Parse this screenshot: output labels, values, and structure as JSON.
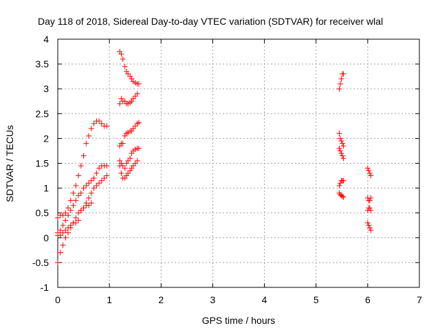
{
  "chart_data": {
    "type": "scatter",
    "title": "Day 118 of 2018, Sidereal Day-to-day VTEC variation (SDTVAR) for receiver wlal",
    "xlabel": "GPS time / hours",
    "ylabel": "SDTVAR / TECUs",
    "xlim": [
      0,
      7
    ],
    "ylim": [
      -1,
      4
    ],
    "xticks": [
      "0",
      "1",
      "2",
      "3",
      "4",
      "5",
      "6",
      "7"
    ],
    "yticks": [
      "-1",
      "-0.5",
      "0",
      "0.5",
      "1",
      "1.5",
      "2",
      "2.5",
      "3",
      "3.5",
      "4"
    ],
    "grid": true,
    "marker": "plus",
    "color": "#ff0000",
    "series": [
      {
        "points": [
          [
            0.0,
            0.4
          ],
          [
            0.05,
            0.45
          ],
          [
            0.1,
            0.45
          ],
          [
            0.15,
            0.5
          ],
          [
            0.2,
            0.6
          ],
          [
            0.25,
            0.75
          ],
          [
            0.3,
            0.9
          ],
          [
            0.35,
            1.05
          ],
          [
            0.4,
            1.25
          ],
          [
            0.45,
            1.45
          ],
          [
            0.5,
            1.65
          ],
          [
            0.55,
            1.9
          ],
          [
            0.6,
            2.05
          ],
          [
            0.65,
            2.2
          ],
          [
            0.7,
            2.3
          ],
          [
            0.75,
            2.35
          ],
          [
            0.8,
            2.35
          ],
          [
            0.85,
            2.3
          ],
          [
            0.9,
            2.25
          ],
          [
            0.95,
            2.25
          ]
        ]
      },
      {
        "points": [
          [
            0.0,
            0.1
          ],
          [
            0.05,
            0.15
          ],
          [
            0.1,
            0.25
          ],
          [
            0.15,
            0.35
          ],
          [
            0.2,
            0.45
          ],
          [
            0.25,
            0.55
          ],
          [
            0.3,
            0.65
          ],
          [
            0.35,
            0.75
          ],
          [
            0.4,
            0.85
          ],
          [
            0.45,
            0.9
          ],
          [
            0.5,
            1.0
          ],
          [
            0.55,
            1.05
          ],
          [
            0.6,
            1.1
          ],
          [
            0.65,
            1.15
          ],
          [
            0.7,
            1.2
          ],
          [
            0.75,
            1.3
          ],
          [
            0.8,
            1.4
          ],
          [
            0.85,
            1.45
          ],
          [
            0.9,
            1.45
          ],
          [
            0.95,
            1.45
          ]
        ]
      },
      {
        "points": [
          [
            0.0,
            -0.5
          ],
          [
            0.05,
            -0.3
          ],
          [
            0.1,
            -0.15
          ],
          [
            0.15,
            0.0
          ],
          [
            0.2,
            0.1
          ],
          [
            0.25,
            0.2
          ],
          [
            0.3,
            0.3
          ],
          [
            0.35,
            0.4
          ],
          [
            0.4,
            0.5
          ],
          [
            0.45,
            0.55
          ],
          [
            0.5,
            0.6
          ],
          [
            0.55,
            0.7
          ],
          [
            0.6,
            0.8
          ],
          [
            0.65,
            0.9
          ],
          [
            0.7,
            1.0
          ],
          [
            0.75,
            1.05
          ],
          [
            0.8,
            1.1
          ],
          [
            0.85,
            1.15
          ],
          [
            0.9,
            1.2
          ],
          [
            0.95,
            1.25
          ]
        ]
      },
      {
        "points": [
          [
            0.0,
            0.05
          ],
          [
            0.05,
            0.05
          ],
          [
            0.1,
            0.1
          ],
          [
            0.15,
            0.15
          ],
          [
            0.2,
            0.2
          ],
          [
            0.25,
            0.25
          ],
          [
            0.3,
            0.3
          ],
          [
            0.35,
            0.3
          ],
          [
            0.4,
            0.35
          ],
          [
            0.45,
            0.55
          ],
          [
            0.5,
            0.6
          ],
          [
            0.55,
            0.65
          ],
          [
            0.6,
            0.65
          ],
          [
            0.65,
            0.7
          ]
        ]
      },
      {
        "points": [
          [
            1.2,
            3.75
          ],
          [
            1.23,
            3.7
          ],
          [
            1.26,
            3.6
          ],
          [
            1.3,
            3.45
          ],
          [
            1.33,
            3.35
          ],
          [
            1.36,
            3.3
          ],
          [
            1.4,
            3.25
          ],
          [
            1.43,
            3.2
          ],
          [
            1.46,
            3.15
          ],
          [
            1.5,
            3.12
          ],
          [
            1.54,
            3.1
          ],
          [
            1.57,
            3.1
          ]
        ]
      },
      {
        "points": [
          [
            1.2,
            2.7
          ],
          [
            1.23,
            2.8
          ],
          [
            1.26,
            2.75
          ],
          [
            1.3,
            2.75
          ],
          [
            1.33,
            2.7
          ],
          [
            1.36,
            2.7
          ],
          [
            1.4,
            2.72
          ],
          [
            1.43,
            2.75
          ],
          [
            1.46,
            2.8
          ],
          [
            1.5,
            2.85
          ],
          [
            1.54,
            2.9
          ]
        ]
      },
      {
        "points": [
          [
            1.2,
            1.85
          ],
          [
            1.23,
            1.9
          ],
          [
            1.26,
            1.9
          ],
          [
            1.3,
            2.05
          ],
          [
            1.33,
            2.1
          ],
          [
            1.36,
            2.12
          ],
          [
            1.4,
            2.15
          ],
          [
            1.43,
            2.15
          ],
          [
            1.46,
            2.2
          ],
          [
            1.5,
            2.25
          ],
          [
            1.54,
            2.3
          ],
          [
            1.57,
            2.32
          ]
        ]
      },
      {
        "points": [
          [
            1.2,
            1.55
          ],
          [
            1.23,
            1.5
          ],
          [
            1.26,
            1.45
          ],
          [
            1.3,
            1.4
          ],
          [
            1.33,
            1.5
          ],
          [
            1.36,
            1.55
          ],
          [
            1.4,
            1.6
          ],
          [
            1.43,
            1.7
          ],
          [
            1.46,
            1.75
          ],
          [
            1.5,
            1.78
          ],
          [
            1.54,
            1.8
          ],
          [
            1.57,
            1.8
          ]
        ]
      },
      {
        "points": [
          [
            1.2,
            1.45
          ],
          [
            1.23,
            1.3
          ],
          [
            1.26,
            1.2
          ],
          [
            1.3,
            1.2
          ],
          [
            1.33,
            1.25
          ],
          [
            1.36,
            1.3
          ],
          [
            1.4,
            1.35
          ],
          [
            1.43,
            1.4
          ],
          [
            1.46,
            1.45
          ],
          [
            1.5,
            1.5
          ],
          [
            1.54,
            1.55
          ]
        ]
      },
      {
        "points": [
          [
            5.45,
            3.0
          ],
          [
            5.47,
            3.1
          ],
          [
            5.49,
            3.2
          ],
          [
            5.51,
            3.3
          ],
          [
            5.53,
            3.3
          ]
        ]
      },
      {
        "points": [
          [
            5.45,
            2.1
          ],
          [
            5.47,
            2.0
          ],
          [
            5.49,
            1.95
          ],
          [
            5.51,
            1.9
          ],
          [
            5.53,
            1.85
          ]
        ]
      },
      {
        "points": [
          [
            5.45,
            1.8
          ],
          [
            5.47,
            1.75
          ],
          [
            5.49,
            1.7
          ],
          [
            5.51,
            1.65
          ],
          [
            5.53,
            1.6
          ]
        ]
      },
      {
        "points": [
          [
            5.45,
            1.05
          ],
          [
            5.47,
            1.1
          ],
          [
            5.49,
            1.15
          ],
          [
            5.51,
            1.15
          ],
          [
            5.53,
            1.15
          ]
        ]
      },
      {
        "points": [
          [
            5.45,
            0.9
          ],
          [
            5.47,
            0.87
          ],
          [
            5.49,
            0.85
          ],
          [
            5.51,
            0.83
          ],
          [
            5.53,
            0.82
          ]
        ]
      },
      {
        "points": [
          [
            6.0,
            1.4
          ],
          [
            6.02,
            1.35
          ],
          [
            6.04,
            1.3
          ],
          [
            6.06,
            1.25
          ]
        ]
      },
      {
        "points": [
          [
            6.0,
            0.8
          ],
          [
            6.02,
            0.75
          ],
          [
            6.04,
            0.75
          ],
          [
            6.06,
            0.8
          ]
        ]
      },
      {
        "points": [
          [
            6.0,
            0.55
          ],
          [
            6.02,
            0.6
          ],
          [
            6.04,
            0.6
          ],
          [
            6.06,
            0.55
          ]
        ]
      },
      {
        "points": [
          [
            6.0,
            0.3
          ],
          [
            6.02,
            0.25
          ],
          [
            6.04,
            0.2
          ],
          [
            6.06,
            0.15
          ]
        ]
      }
    ]
  }
}
